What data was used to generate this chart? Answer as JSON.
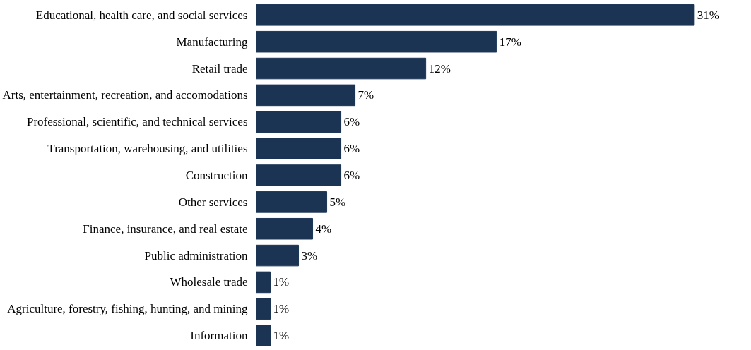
{
  "chart_data": {
    "type": "bar",
    "orientation": "horizontal",
    "categories": [
      "Educational, health care, and social services",
      "Manufacturing",
      "Retail trade",
      "Arts, entertainment, recreation, and accomodations",
      "Professional, scientific, and technical services",
      "Transportation, warehousing, and utilities",
      "Construction",
      "Other services",
      "Finance, insurance, and real estate",
      "Public administration",
      "Wholesale trade",
      "Agriculture, forestry, fishing, hunting, and mining",
      "Information"
    ],
    "values": [
      31,
      17,
      12,
      7,
      6,
      6,
      6,
      5,
      4,
      3,
      1,
      1,
      1
    ],
    "color": "#1b3454",
    "value_labels": [
      "31%",
      "17%",
      "12%",
      "7%",
      "6%",
      "6%",
      "6%",
      "5%",
      "4%",
      "3%",
      "1%",
      "1%",
      "1%"
    ]
  }
}
